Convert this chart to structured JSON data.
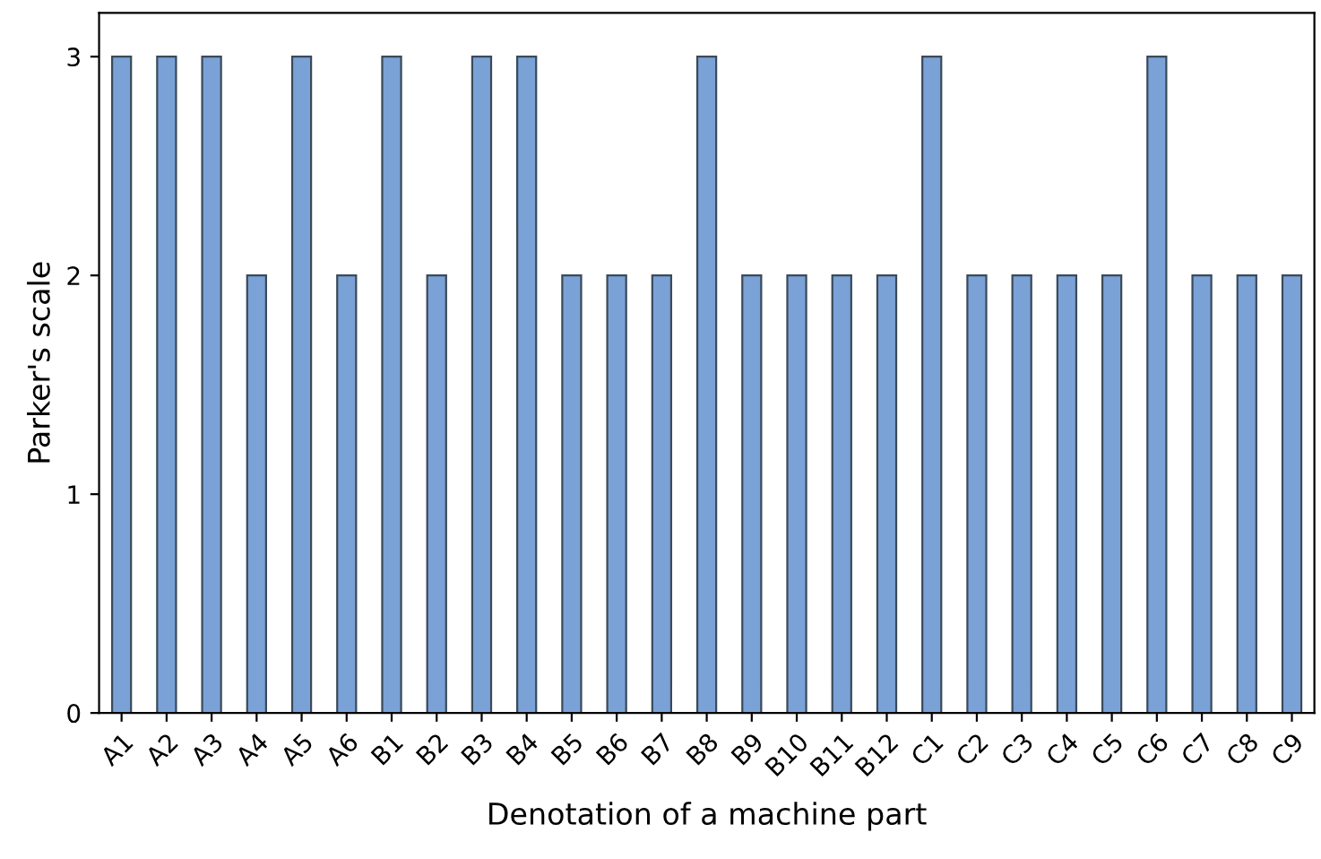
{
  "chart_data": {
    "type": "bar",
    "xlabel": "Denotation of a machine part",
    "ylabel": "Parker's scale",
    "categories": [
      "A1",
      "A2",
      "A3",
      "A4",
      "A5",
      "A6",
      "B1",
      "B2",
      "B3",
      "B4",
      "B5",
      "B6",
      "B7",
      "B8",
      "B9",
      "B10",
      "B11",
      "B12",
      "C1",
      "C2",
      "C3",
      "C4",
      "C5",
      "C6",
      "C7",
      "C8",
      "C9"
    ],
    "values": [
      3,
      3,
      3,
      2,
      3,
      2,
      3,
      2,
      3,
      3,
      2,
      2,
      2,
      3,
      2,
      2,
      2,
      2,
      3,
      2,
      2,
      2,
      2,
      3,
      2,
      2,
      2
    ],
    "color": "#7ba2d6",
    "ylim": [
      0,
      3.2
    ],
    "yticks": [
      0,
      1,
      2,
      3
    ],
    "grid": false,
    "legend": false
  }
}
